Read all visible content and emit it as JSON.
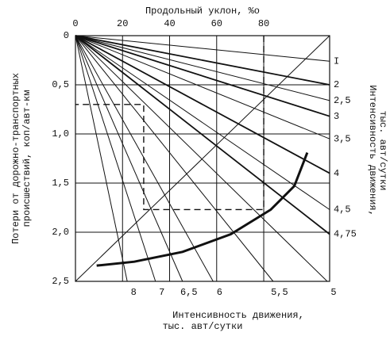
{
  "chart_data": {
    "type": "nomogram",
    "x_label": "Продольный уклон, %о",
    "y_label": [
      "Потери от дорожно-транспортных",
      "происшествий, коп/авт-км"
    ],
    "right_label": [
      "Интенсивность движения,",
      "тыс. авт/сутки"
    ],
    "bottom_label": [
      "Интенсивность движения,",
      "тыс. авт/сутки"
    ],
    "xlim": [
      0,
      108
    ],
    "ylim": [
      0,
      2.5
    ],
    "xticks": [
      0,
      20,
      40,
      60,
      80
    ],
    "yticks": [
      0,
      {
        "value": 0.5,
        "label": "0,5"
      },
      {
        "value": 1,
        "label": "1,0"
      },
      {
        "value": 1.5,
        "label": "1,5"
      },
      {
        "value": 2,
        "label": "2,0"
      },
      {
        "value": 2.5,
        "label": "2,5"
      }
    ],
    "grid": true,
    "right_scale": {
      "labels": [
        "I",
        "2",
        "2,5",
        "3",
        "3,5",
        "4",
        "4,5",
        "4,75"
      ],
      "values": [
        0.26,
        0.5,
        0.66,
        0.82,
        1.05,
        1.4,
        1.77,
        2.02
      ]
    },
    "bottom_scale": {
      "labels": [
        "8",
        "7",
        "6,5",
        "6",
        "5,5",
        "5"
      ],
      "values": [
        22,
        34,
        45.5,
        58.5,
        84,
        107
      ]
    },
    "series": [
      {
        "name": "curve",
        "color": "#111",
        "x": [
          9,
          25,
          45.5,
          66,
          83,
          93,
          98.5
        ],
        "values": [
          2.34,
          2.3,
          2.2,
          2.02,
          1.77,
          1.53,
          1.19
        ]
      },
      {
        "name": "example",
        "color": "#111",
        "x": [
          80,
          80,
          29,
          29,
          0
        ],
        "values": [
          0,
          1.77,
          1.77,
          0.7,
          0.7
        ]
      }
    ]
  }
}
